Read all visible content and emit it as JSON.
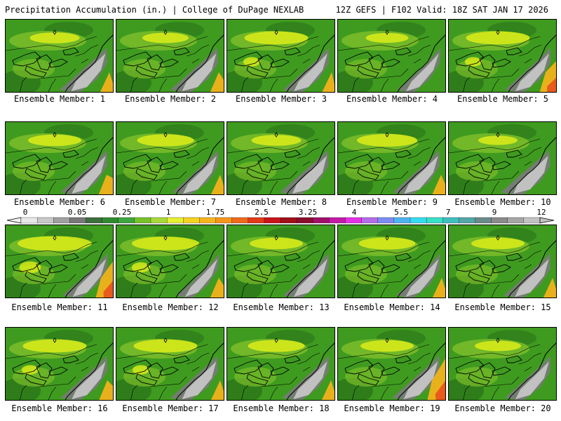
{
  "header": {
    "left": "Precipitation Accumulation (in.) | College of DuPage NEXLAB",
    "right": "12Z GEFS | F102 Valid: 18Z SAT JAN 17 2026"
  },
  "members": [
    {
      "label": "Ensemble Member: 1",
      "intensity": 0.35,
      "gray": 0.6,
      "orange": 0.1
    },
    {
      "label": "Ensemble Member: 2",
      "intensity": 0.3,
      "gray": 0.6,
      "orange": 0.2
    },
    {
      "label": "Ensemble Member: 3",
      "intensity": 0.55,
      "gray": 0.5,
      "orange": 0.05
    },
    {
      "label": "Ensemble Member: 4",
      "intensity": 0.25,
      "gray": 0.35,
      "orange": 0
    },
    {
      "label": "Ensemble Member: 5",
      "intensity": 0.55,
      "gray": 0.5,
      "orange": 0.6
    },
    {
      "label": "Ensemble Member: 6",
      "intensity": 0.4,
      "gray": 0.55,
      "orange": 0.3
    },
    {
      "label": "Ensemble Member: 7",
      "intensity": 0.45,
      "gray": 0.5,
      "orange": 0.1
    },
    {
      "label": "Ensemble Member: 8",
      "intensity": 0.35,
      "gray": 0.65,
      "orange": 0
    },
    {
      "label": "Ensemble Member: 9",
      "intensity": 0.5,
      "gray": 0.55,
      "orange": 0.15
    },
    {
      "label": "Ensemble Member: 10",
      "intensity": 0.2,
      "gray": 0.7,
      "orange": 0
    },
    {
      "label": "Ensemble Member: 11",
      "intensity": 0.7,
      "gray": 0.45,
      "orange": 0.7
    },
    {
      "label": "Ensemble Member: 12",
      "intensity": 0.6,
      "gray": 0.3,
      "orange": 0.2
    },
    {
      "label": "Ensemble Member: 13",
      "intensity": 0.4,
      "gray": 0.5,
      "orange": 0
    },
    {
      "label": "Ensemble Member: 14",
      "intensity": 0.45,
      "gray": 0.4,
      "orange": 0.1
    },
    {
      "label": "Ensemble Member: 15",
      "intensity": 0.4,
      "gray": 0.55,
      "orange": 0.1
    },
    {
      "label": "Ensemble Member: 16",
      "intensity": 0.55,
      "gray": 0.55,
      "orange": 0.25
    },
    {
      "label": "Ensemble Member: 17",
      "intensity": 0.55,
      "gray": 0.6,
      "orange": 0.1
    },
    {
      "label": "Ensemble Member: 18",
      "intensity": 0.45,
      "gray": 0.55,
      "orange": 0.1
    },
    {
      "label": "Ensemble Member: 19",
      "intensity": 0.4,
      "gray": 0.6,
      "orange": 0.8
    },
    {
      "label": "Ensemble Member: 20",
      "intensity": 0.3,
      "gray": 0.5,
      "orange": 0
    }
  ],
  "colorbar": {
    "tick_labels": [
      "0",
      "0.05",
      "0.25",
      "1",
      "1.75",
      "2.5",
      "3.25",
      "4",
      "5.5",
      "7",
      "9",
      "12"
    ],
    "colors": [
      "#e8e8e8",
      "#c8c8c8",
      "#a0a0a0",
      "#787878",
      "#3c6f3c",
      "#2f8a2f",
      "#3fa63f",
      "#76c32a",
      "#a8d83a",
      "#e6ef33",
      "#f5d21f",
      "#f6b51c",
      "#f4961c",
      "#ee6a1c",
      "#e33a18",
      "#c8141a",
      "#a01018",
      "#8a0d2a",
      "#a0106a",
      "#c41aa8",
      "#e62fe6",
      "#b46ce6",
      "#7c8cf0",
      "#4fb2f0",
      "#35dcef",
      "#37e0c8",
      "#3ec0bf",
      "#53a7a6",
      "#6b8b8b",
      "#8b8b8b",
      "#a6a6a6",
      "#c2c2c2"
    ]
  },
  "palette": {
    "base": "#3f9b1f",
    "dark": "#2f7d1a",
    "light": "#7bbd2a",
    "yellow": "#d6ea1a",
    "orange": "#f1b21c",
    "red": "#e8561c",
    "gray_dark": "#7a7a7a",
    "gray_light": "#c9c9c9"
  }
}
